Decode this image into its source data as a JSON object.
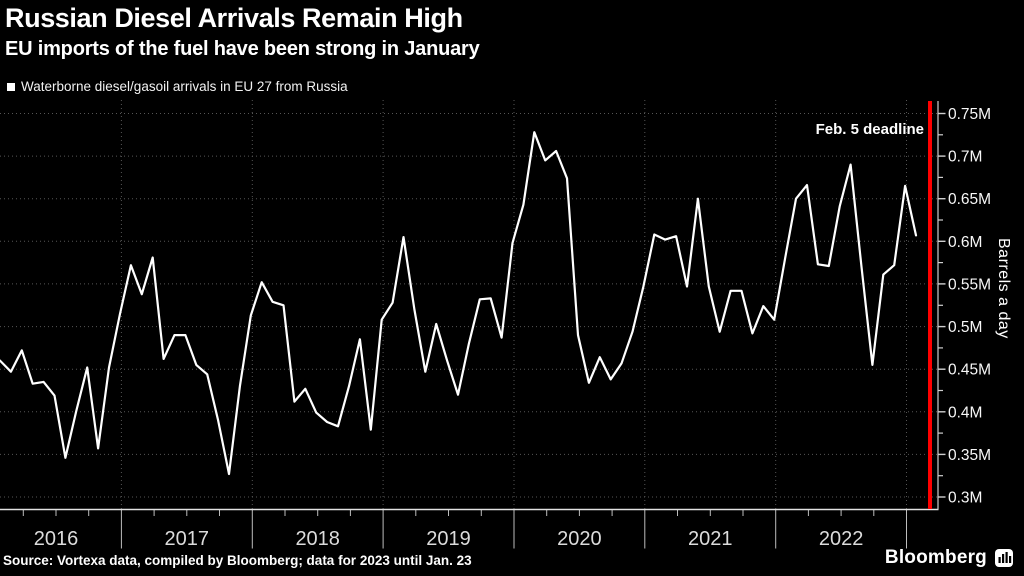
{
  "header": {
    "title": "Russian Diesel Arrivals Remain High",
    "subtitle": "EU imports of the fuel have been strong in January"
  },
  "legend": {
    "label": "Waterborne diesel/gasoil arrivals in EU 27 from Russia",
    "marker_color": "#ffffff"
  },
  "annotation": {
    "label": "Feb. 5 deadline",
    "line_color": "#ff0000"
  },
  "footer": {
    "source": "Source: Vortexa data, compiled by Bloomberg; data for 2023 until Jan. 23",
    "logo": "Bloomberg"
  },
  "chart_data": {
    "type": "line",
    "title": "Russian Diesel Arrivals Remain High",
    "subtitle": "EU imports of the fuel have been strong in January",
    "series_name": "Waterborne diesel/gasoil arrivals in EU 27 from Russia",
    "x_start_month": "2016-01",
    "x_end_month": "2023-01",
    "x_frequency": "monthly",
    "values": [
      0.46,
      0.447,
      0.472,
      0.433,
      0.435,
      0.419,
      0.346,
      0.401,
      0.452,
      0.357,
      0.452,
      0.515,
      0.572,
      0.538,
      0.581,
      0.462,
      0.49,
      0.49,
      0.455,
      0.444,
      0.39,
      0.327,
      0.43,
      0.513,
      0.552,
      0.529,
      0.525,
      0.412,
      0.427,
      0.399,
      0.388,
      0.383,
      0.43,
      0.485,
      0.379,
      0.508,
      0.528,
      0.605,
      0.52,
      0.447,
      0.503,
      0.46,
      0.42,
      0.48,
      0.532,
      0.533,
      0.487,
      0.598,
      0.643,
      0.728,
      0.695,
      0.706,
      0.674,
      0.49,
      0.434,
      0.464,
      0.438,
      0.457,
      0.494,
      0.547,
      0.608,
      0.602,
      0.606,
      0.547,
      0.65,
      0.547,
      0.494,
      0.542,
      0.542,
      0.492,
      0.524,
      0.508,
      0.58,
      0.65,
      0.666,
      0.573,
      0.571,
      0.641,
      0.69,
      0.57,
      0.455,
      0.561,
      0.572,
      0.665,
      0.607
    ],
    "unit": "M barrels a day",
    "ylabel": "Barrels a day",
    "ylim": [
      0.3,
      0.75
    ],
    "ytick_values": [
      0.3,
      0.35,
      0.4,
      0.45,
      0.5,
      0.55,
      0.6,
      0.65,
      0.7,
      0.75
    ],
    "ytick_labels": [
      "0.3M",
      "0.35M",
      "0.4M",
      "0.45M",
      "0.5M",
      "0.55M",
      "0.6M",
      "0.65M",
      "0.7M",
      "0.75M"
    ],
    "year_labels": [
      "2016",
      "2017",
      "2018",
      "2019",
      "2020",
      "2021",
      "2022"
    ],
    "grid": "dotted",
    "legend_position": "top-left",
    "line_color": "#ffffff",
    "background_color": "#000000",
    "annotation_line": {
      "label": "Feb. 5 deadline",
      "color": "#ff0000",
      "position": "right-edge"
    }
  }
}
